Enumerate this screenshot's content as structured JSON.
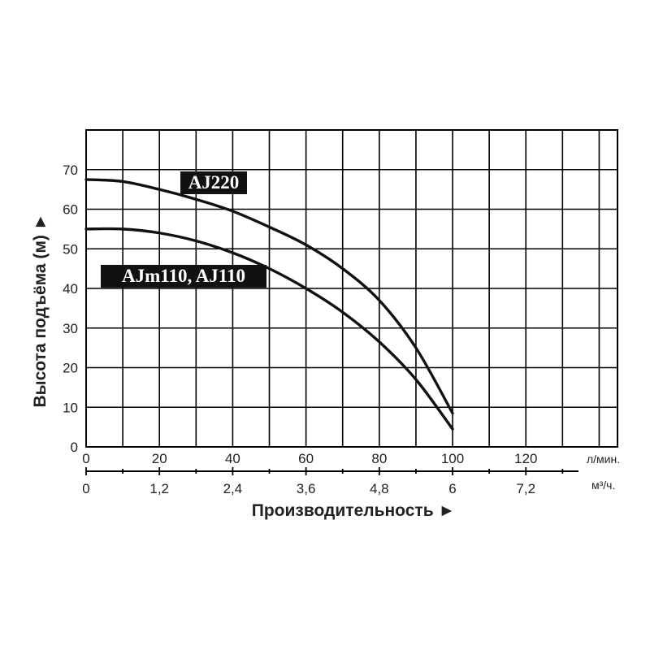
{
  "chart_data": {
    "type": "line",
    "ylabel": "Высота подъёма (м) ►",
    "xlabel": "Производительность ►",
    "x_unit_primary": "л/мин.",
    "x_unit_secondary": "м³/ч.",
    "x_ticks_primary": [
      "0",
      "20",
      "40",
      "60",
      "80",
      "100",
      "120"
    ],
    "x_ticks_secondary": [
      "0",
      "1,2",
      "2,4",
      "3,6",
      "4,8",
      "6",
      "7,2"
    ],
    "y_ticks": [
      "0",
      "10",
      "20",
      "30",
      "40",
      "50",
      "60",
      "70"
    ],
    "xlim": [
      0,
      145
    ],
    "ylim": [
      0,
      80
    ],
    "grid": true,
    "series": [
      {
        "name": "AJ220",
        "x": [
          0,
          10,
          20,
          30,
          40,
          50,
          60,
          70,
          80,
          90,
          100
        ],
        "y": [
          67.5,
          67,
          65,
          62.5,
          59.5,
          55.5,
          51,
          45,
          37,
          25,
          8.5
        ]
      },
      {
        "name": "AJm110, AJ110",
        "x": [
          0,
          10,
          20,
          30,
          40,
          50,
          60,
          70,
          80,
          90,
          100
        ],
        "y": [
          55,
          55,
          54,
          52,
          49,
          45,
          40,
          34,
          26.5,
          17,
          4.5
        ]
      }
    ]
  }
}
